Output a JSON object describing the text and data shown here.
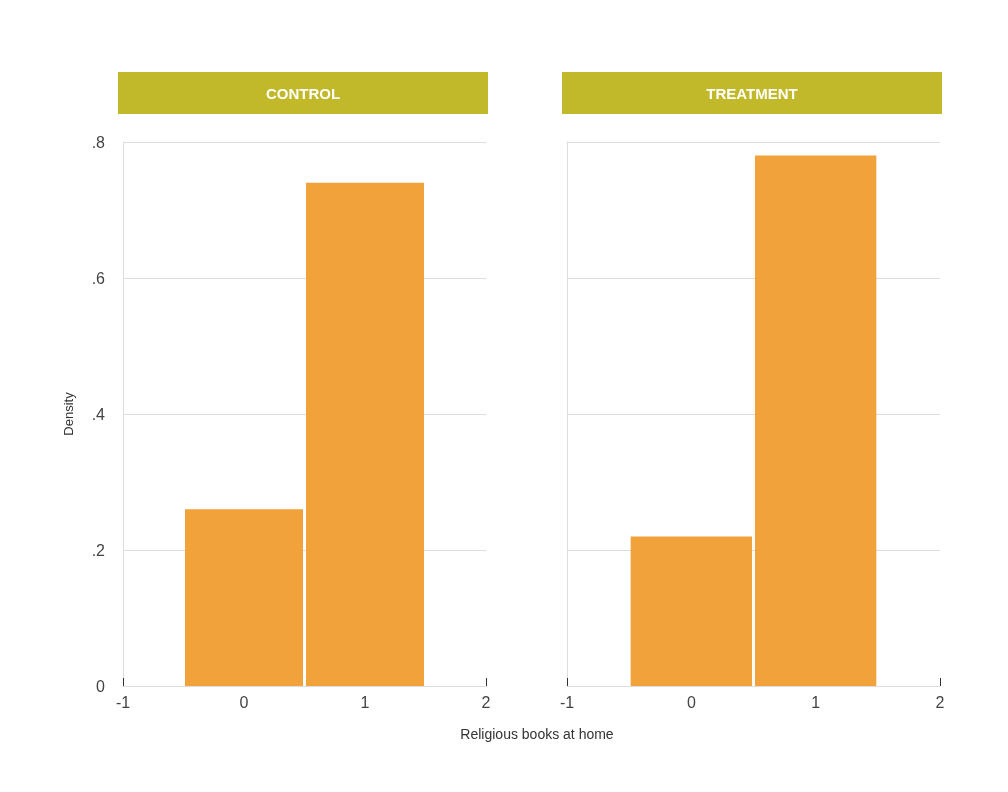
{
  "chart_data": [
    {
      "type": "histogram",
      "title": "CONTROL",
      "ylabel": "Density",
      "xlabel": "Religious books at home",
      "bins": [
        -0.5,
        0.5,
        1.5
      ],
      "values": [
        0.26,
        0.74
      ],
      "color": "#f2a23a",
      "xlim": [
        -1,
        2
      ],
      "xticks": [
        -1,
        0,
        1,
        2
      ],
      "ylim": [
        0,
        0.8
      ],
      "yticks": [
        0,
        {
          "value": 0.2,
          "label": ".2"
        },
        {
          "value": 0.4,
          "label": ".4"
        },
        {
          "value": 0.6,
          "label": ".6"
        },
        {
          "value": 0.8,
          "label": ".8"
        }
      ],
      "grid": "y"
    },
    {
      "type": "histogram",
      "title": "TREATMENT",
      "bins": [
        -0.5,
        0.5,
        1.5
      ],
      "values": [
        0.22,
        0.78
      ],
      "color": "#f2a23a",
      "xlim": [
        -1,
        2
      ],
      "xticks": [
        -1,
        0,
        1,
        2
      ],
      "ylim": [
        0,
        0.8
      ],
      "yticks": [
        0,
        0.2,
        0.4,
        0.6,
        0.8
      ],
      "grid": "y",
      "tick_labels": "x"
    }
  ]
}
